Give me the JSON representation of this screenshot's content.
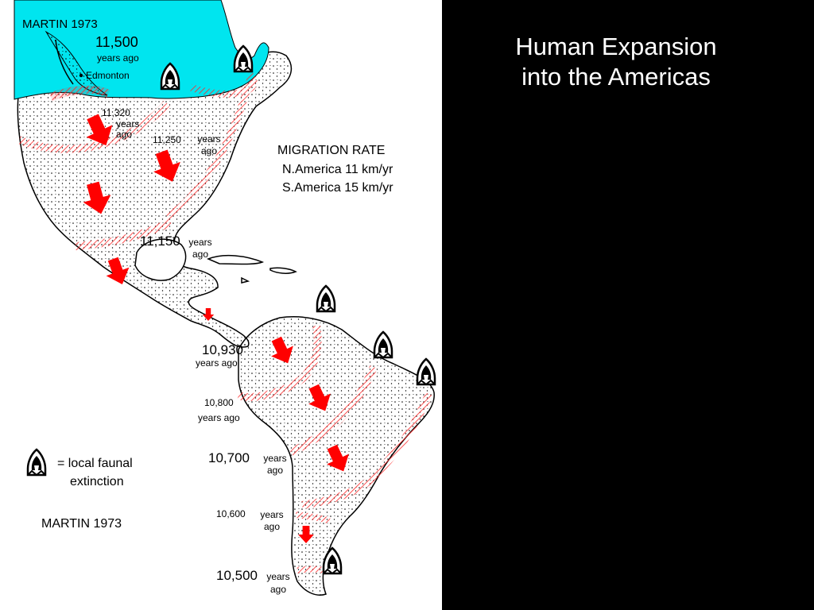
{
  "slide": {
    "title_line1": "Human Expansion",
    "title_line2": "into the Americas"
  },
  "map": {
    "top_credit": "MARTIN 1973",
    "city": "Edmonton",
    "dates": [
      {
        "id": "d11500",
        "value": "11,500",
        "unit": "years ago"
      },
      {
        "id": "d11320",
        "value": "11,320",
        "unit": "years ago"
      },
      {
        "id": "d11250",
        "value": "11,250",
        "unit": "years ago"
      },
      {
        "id": "d11150",
        "value": "11,150",
        "unit": "years ago"
      },
      {
        "id": "d10930",
        "value": "10,930",
        "unit": "years ago"
      },
      {
        "id": "d10800",
        "value": "10,800",
        "unit": "years ago"
      },
      {
        "id": "d10700",
        "value": "10,700",
        "unit": "years ago"
      },
      {
        "id": "d10600",
        "value": "10,600",
        "unit": "years ago"
      },
      {
        "id": "d10500",
        "value": "10,500",
        "unit": "years ago"
      }
    ],
    "migration_rate": {
      "heading": "MIGRATION RATE",
      "north": "N.America 11 km/yr",
      "south": "S.America 15 km/yr"
    },
    "legend": {
      "line1": "= local faunal",
      "line2": "extinction"
    },
    "bottom_credit": "MARTIN 1973",
    "colors": {
      "ice": "#00e5ef",
      "arrow": "#ff0000",
      "front": "#ff2a2a",
      "background": "#000000",
      "panel": "#ffffff"
    }
  }
}
